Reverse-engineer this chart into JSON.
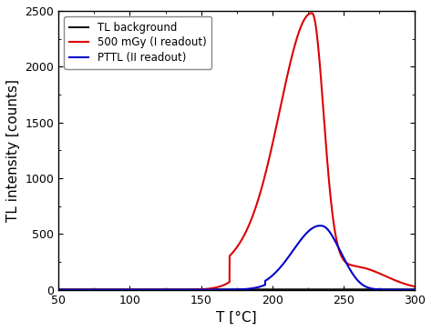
{
  "title": "",
  "xlabel": "T [°C]",
  "ylabel": "TL intensity [counts]",
  "xlim": [
    50,
    300
  ],
  "ylim": [
    0,
    2500
  ],
  "yticks": [
    0,
    500,
    1000,
    1500,
    2000,
    2500
  ],
  "xticks": [
    50,
    100,
    150,
    200,
    250,
    300
  ],
  "legend": [
    {
      "label": "TL background",
      "color": "#111111",
      "lw": 1.5
    },
    {
      "label": "500 mGy (I readout)",
      "color": "#dd0000",
      "lw": 1.5
    },
    {
      "label": "PTTL (II readout)",
      "color": "#0000cc",
      "lw": 1.5
    }
  ],
  "background_color": "#ffffff",
  "grid": false
}
